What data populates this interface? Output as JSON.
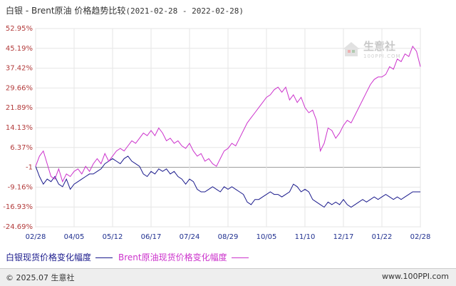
{
  "title": {
    "text": "白银 - Brent原油 价格趋势比较",
    "date_range": "(2021-02-28 - 2022-02-28)"
  },
  "watermark": {
    "logo": "生意社",
    "sub": "100PPI.COM"
  },
  "legend": {
    "silver": "白银现货价格变化幅度",
    "brent": "Brent原油现货价格变化幅度"
  },
  "footer": {
    "left": "© 2025.07 生意社",
    "right": "www.100PPI.com"
  },
  "colors": {
    "silver": "#1a1a8c",
    "brent": "#cc33cc",
    "axis_text": "#b23a3a",
    "xaxis_text": "#1f2f8f"
  },
  "chart_data": {
    "type": "line",
    "title": "白银 - Brent原油 价格趋势比较",
    "y_tick_labels": [
      "52.95%",
      "45.19%",
      "37.42%",
      "29.66%",
      "21.89%",
      "14.13%",
      "6.37%",
      "-1",
      "-9.16%",
      "-16.93%",
      "-24.69%"
    ],
    "y_tick_values": [
      52.95,
      45.19,
      37.42,
      29.66,
      21.89,
      14.13,
      6.37,
      -1.4,
      -9.16,
      -16.93,
      -24.69
    ],
    "ylim": [
      -24.69,
      52.95
    ],
    "x_tick_labels": [
      "02/28",
      "04/05",
      "05/12",
      "06/17",
      "07/24",
      "08/29",
      "10/05",
      "11/10",
      "12/17",
      "01/22",
      "02/28"
    ],
    "grid": true,
    "legend_placement": "bottom",
    "series": [
      {
        "name": "白银现货价格变化幅度",
        "color": "#1a1a8c",
        "x_index": [
          0,
          0.1,
          0.2,
          0.3,
          0.4,
          0.5,
          0.6,
          0.7,
          0.8,
          0.9,
          1.0,
          1.1,
          1.2,
          1.3,
          1.4,
          1.5,
          1.6,
          1.7,
          1.8,
          1.9,
          2.0,
          2.1,
          2.2,
          2.3,
          2.4,
          2.5,
          2.6,
          2.7,
          2.8,
          2.9,
          3.0,
          3.1,
          3.2,
          3.3,
          3.4,
          3.5,
          3.6,
          3.7,
          3.8,
          3.9,
          4.0,
          4.1,
          4.2,
          4.3,
          4.4,
          4.5,
          4.6,
          4.7,
          4.8,
          4.9,
          5.0,
          5.1,
          5.2,
          5.3,
          5.4,
          5.5,
          5.6,
          5.7,
          5.8,
          5.9,
          6.0,
          6.1,
          6.2,
          6.3,
          6.4,
          6.5,
          6.6,
          6.7,
          6.8,
          6.9,
          7.0,
          7.1,
          7.2,
          7.3,
          7.4,
          7.5,
          7.6,
          7.7,
          7.8,
          7.9,
          8.0,
          8.1,
          8.2,
          8.3,
          8.4,
          8.5,
          8.6,
          8.7,
          8.8,
          8.9,
          9.0,
          9.1,
          9.2,
          9.3,
          9.4,
          9.5,
          9.6,
          9.7,
          9.8,
          9.9,
          10.0
        ],
        "values": [
          -1,
          -5,
          -8,
          -6,
          -7,
          -5,
          -8,
          -9,
          -6,
          -10,
          -8,
          -7,
          -6,
          -5,
          -4,
          -4,
          -3,
          -2,
          0,
          1,
          2,
          1,
          0,
          2,
          3,
          1,
          0,
          -1,
          -4,
          -5,
          -3,
          -4,
          -2,
          -3,
          -2,
          -4,
          -3,
          -5,
          -6,
          -8,
          -6,
          -7,
          -10,
          -11,
          -11,
          -10,
          -9,
          -10,
          -11,
          -9,
          -10,
          -9,
          -10,
          -11,
          -12,
          -15,
          -16,
          -14,
          -14,
          -13,
          -12,
          -11,
          -12,
          -12,
          -13,
          -12,
          -11,
          -8,
          -9,
          -11,
          -10,
          -11,
          -14,
          -15,
          -16,
          -17,
          -15,
          -16,
          -15,
          -16,
          -14,
          -16,
          -17,
          -16,
          -15,
          -14,
          -15,
          -14,
          -13,
          -14,
          -13,
          -12,
          -13,
          -14,
          -13,
          -14,
          -13,
          -12,
          -11,
          -11,
          -11
        ]
      },
      {
        "name": "Brent原油现货价格变化幅度",
        "color": "#cc33cc",
        "x_index": [
          0,
          0.1,
          0.2,
          0.3,
          0.4,
          0.5,
          0.6,
          0.7,
          0.8,
          0.9,
          1.0,
          1.1,
          1.2,
          1.3,
          1.4,
          1.5,
          1.6,
          1.7,
          1.8,
          1.9,
          2.0,
          2.1,
          2.2,
          2.3,
          2.4,
          2.5,
          2.6,
          2.7,
          2.8,
          2.9,
          3.0,
          3.1,
          3.2,
          3.3,
          3.4,
          3.5,
          3.6,
          3.7,
          3.8,
          3.9,
          4.0,
          4.1,
          4.2,
          4.3,
          4.4,
          4.5,
          4.6,
          4.7,
          4.8,
          4.9,
          5.0,
          5.1,
          5.2,
          5.3,
          5.4,
          5.5,
          5.6,
          5.7,
          5.8,
          5.9,
          6.0,
          6.1,
          6.2,
          6.3,
          6.4,
          6.5,
          6.6,
          6.7,
          6.8,
          6.9,
          7.0,
          7.1,
          7.2,
          7.3,
          7.4,
          7.5,
          7.6,
          7.7,
          7.8,
          7.9,
          8.0,
          8.1,
          8.2,
          8.3,
          8.4,
          8.5,
          8.6,
          8.7,
          8.8,
          8.9,
          9.0,
          9.1,
          9.2,
          9.3,
          9.4,
          9.5,
          9.6,
          9.7,
          9.8,
          9.9,
          10.0
        ],
        "values": [
          -1,
          3,
          5,
          0,
          -5,
          -6,
          -2,
          -7,
          -4,
          -5,
          -3,
          -2,
          -4,
          -1,
          -3,
          0,
          2,
          0,
          4,
          1,
          3,
          5,
          6,
          5,
          7,
          9,
          8,
          10,
          12,
          11,
          13,
          11,
          14,
          12,
          9,
          10,
          8,
          9,
          7,
          6,
          8,
          5,
          3,
          4,
          1,
          2,
          0,
          -1,
          2,
          5,
          6,
          8,
          7,
          10,
          13,
          16,
          18,
          20,
          22,
          24,
          26,
          27,
          29,
          30,
          28,
          30,
          25,
          27,
          24,
          26,
          22,
          20,
          21,
          17,
          5,
          8,
          14,
          13,
          10,
          12,
          15,
          17,
          16,
          19,
          22,
          25,
          28,
          31,
          33,
          34,
          34,
          35,
          38,
          37,
          41,
          40,
          43,
          42,
          46,
          44,
          38
        ]
      }
    ]
  }
}
